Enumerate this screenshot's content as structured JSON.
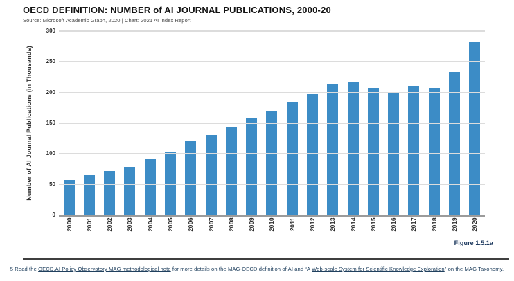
{
  "header": {
    "title": "OECD DEFINITION: NUMBER of AI JOURNAL PUBLICATIONS, 2000-20",
    "source": "Source: Microsoft Academic Graph, 2020 | Chart: 2021 AI Index Report"
  },
  "chart_data": {
    "type": "bar",
    "title": "OECD DEFINITION: NUMBER of AI JOURNAL PUBLICATIONS, 2000-20",
    "categories": [
      "2000",
      "2001",
      "2002",
      "2003",
      "2004",
      "2005",
      "2006",
      "2007",
      "2008",
      "2009",
      "2010",
      "2011",
      "2012",
      "2013",
      "2014",
      "2015",
      "2016",
      "2017",
      "2018",
      "2019",
      "2020"
    ],
    "values": [
      58,
      65,
      72,
      79,
      91,
      104,
      122,
      131,
      144,
      158,
      170,
      184,
      197,
      213,
      217,
      207,
      201,
      211,
      208,
      233,
      282
    ],
    "xlabel": "",
    "ylabel": "Number of AI Journal Publications (in Thousands)",
    "ylim": [
      0,
      300
    ],
    "yticks": [
      0,
      50,
      100,
      150,
      200,
      250,
      300
    ],
    "grid": true,
    "legend": false,
    "bar_color": "#3c8cc6"
  },
  "figure_label": "Figure 1.5.1a",
  "footnote": {
    "text_start": "5 Read the ",
    "link_1": "OECD.AI Policy Observatory MAG methodological note",
    "text_middle": " for more details on the MAG-OECD definition of AI and “A ",
    "link_2": "Web-scale System for Scientific Knowledge Exploration",
    "text_end": "” on the MAG Taxonomy."
  },
  "colors": {
    "bar": "#3c8cc6",
    "gridline": "#dcdcdc",
    "axis_line": "#9b9b9b",
    "figure_label": "#1e3a5f",
    "footnote": "#20405e"
  }
}
